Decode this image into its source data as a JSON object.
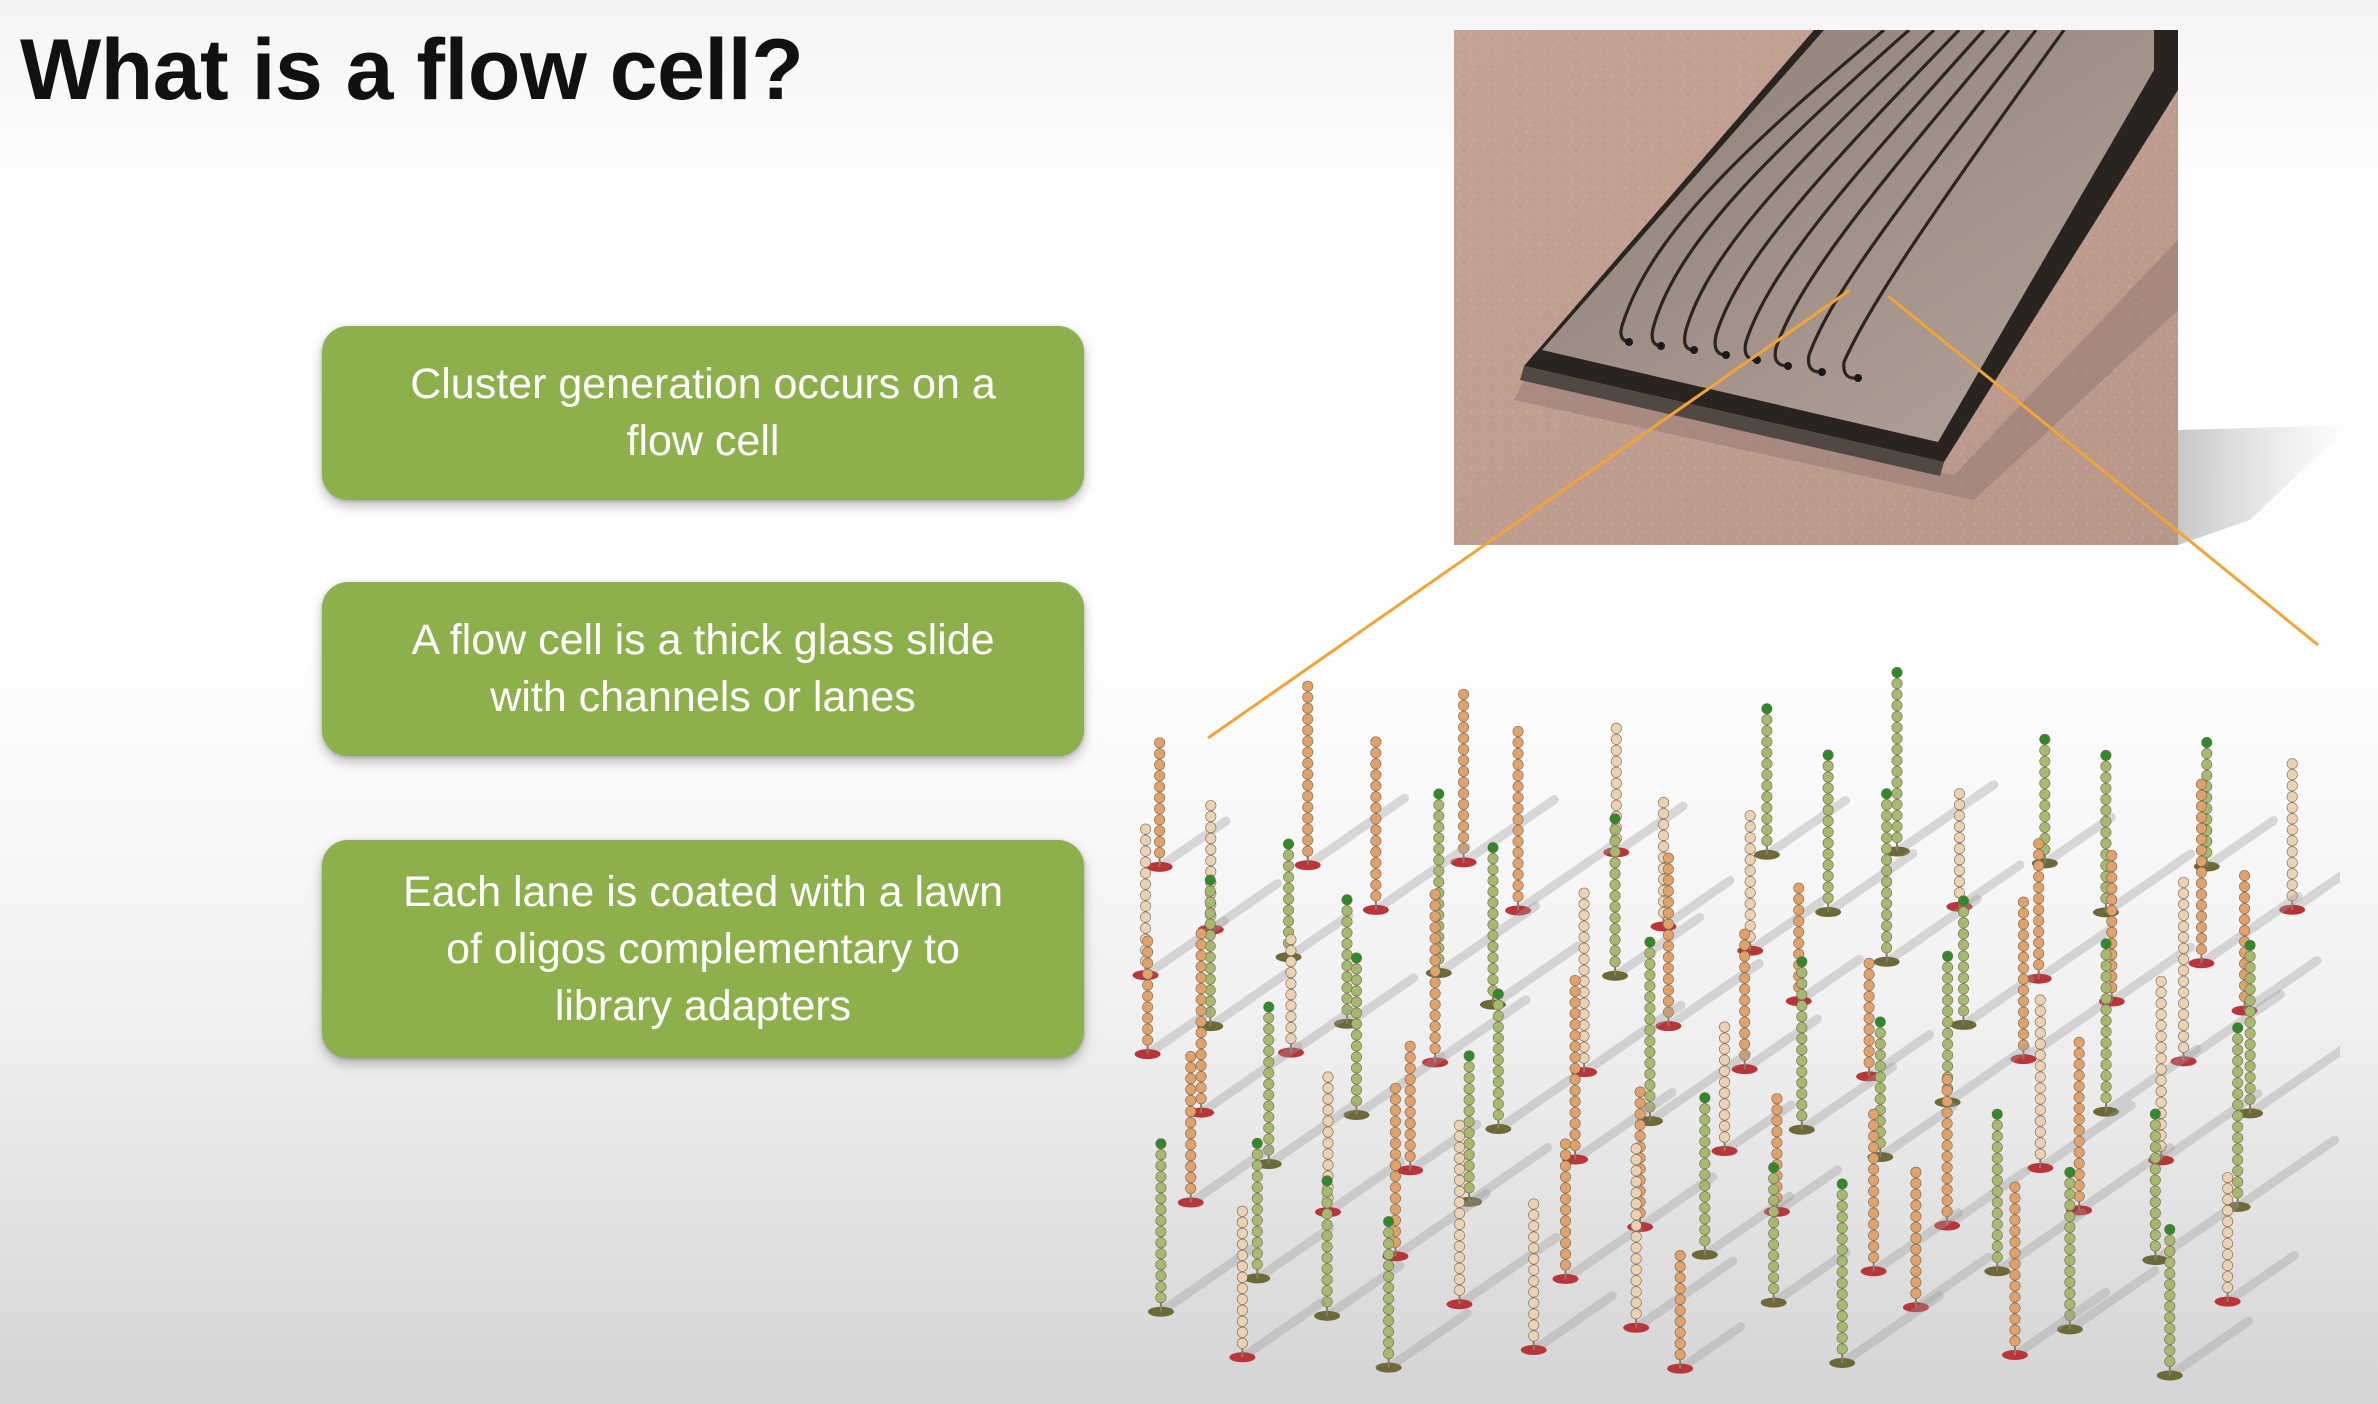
{
  "slide": {
    "title": "What is a flow cell?"
  },
  "bullets": [
    {
      "lines": [
        "Cluster generation occurs on a",
        "flow cell"
      ]
    },
    {
      "lines": [
        "A flow cell is a thick glass slide",
        "with channels or lanes"
      ]
    },
    {
      "lines": [
        "Each lane is coated with a lawn",
        "of oligos complementary to",
        "library adapters"
      ]
    }
  ],
  "colors": {
    "box_fill": "#8db04c",
    "box_text": "#ffffff",
    "title_text": "#111111",
    "callout_line": "#f0a43a",
    "oligo_orange": "#e0a26a",
    "oligo_cream": "#ecd2b4",
    "oligo_green": "#a5ba6e",
    "oligo_green_tip": "#2f8a2b",
    "oligo_red_base": "#b8363a",
    "oligo_olive_base": "#6d6a3a"
  }
}
